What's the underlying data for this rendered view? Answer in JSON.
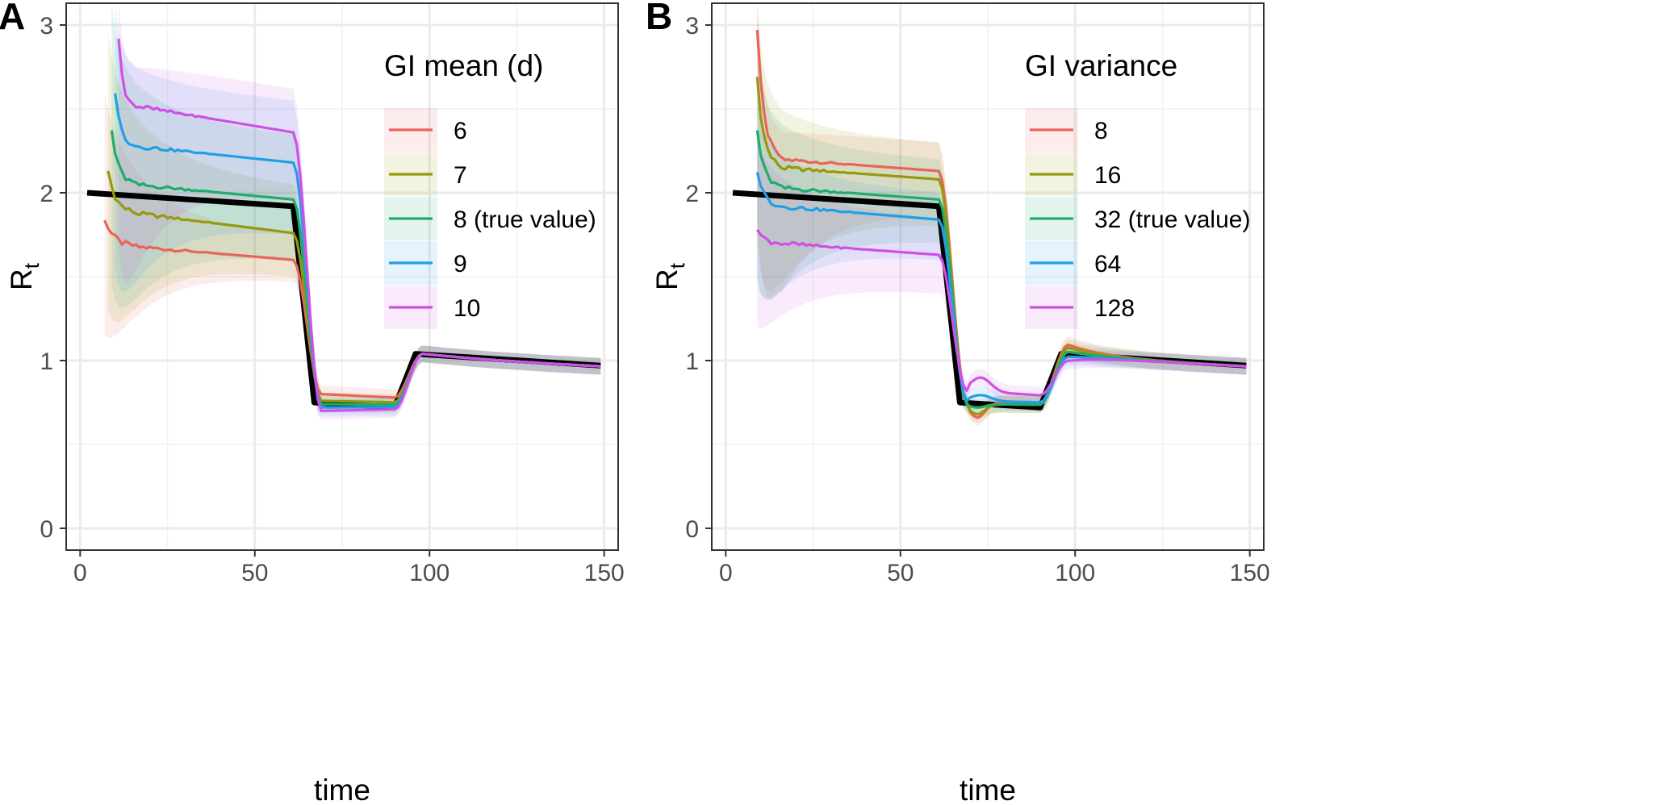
{
  "colors": {
    "background": "#ffffff",
    "grid_major": "#ebebeb",
    "grid_minor": "#f4f4f4",
    "frame": "#333333",
    "truth_line": "#000000"
  },
  "chart_data": [
    {
      "panel_label": "A",
      "type": "line",
      "xlabel": "time",
      "ylabel": "R",
      "ylabel_subscript": "t",
      "xlim": [
        -4,
        154
      ],
      "ylim": [
        -0.13,
        3.13
      ],
      "xticks": [
        0,
        50,
        100,
        150
      ],
      "yticks": [
        0,
        1,
        2,
        3
      ],
      "grid": true,
      "legend": {
        "title": "GI mean (d)",
        "placement": "top-right-inside"
      },
      "truth": {
        "x": [
          2,
          61,
          67,
          90,
          96,
          149
        ],
        "y": [
          2,
          1.92,
          0.75,
          0.72,
          1.04,
          0.97
        ]
      },
      "series": [
        {
          "name": "6",
          "color": "#e8645a",
          "start": 7,
          "peak": 1.85,
          "y_t15": 1.68,
          "y_t60": 1.6,
          "plateau": 0.8,
          "bump": 0,
          "band_lo_t0": 1.15,
          "band_hi_t0": 2.6,
          "band_lo_t60": 1.47,
          "band_hi_t60": 1.75
        },
        {
          "name": "7",
          "color": "#96990b",
          "start": 8,
          "peak": 2.13,
          "y_t15": 1.88,
          "y_t60": 1.76,
          "plateau": 0.76,
          "bump": 0,
          "band_lo_t0": 1.3,
          "band_hi_t0": 2.95,
          "band_lo_t60": 1.5,
          "band_hi_t60": 2.05
        },
        {
          "name": "8 (true value)",
          "color": "#20ac6b",
          "start": 9,
          "peak": 2.37,
          "y_t15": 2.05,
          "y_t60": 1.96,
          "plateau": 0.74,
          "bump": 0,
          "band_lo_t0": 1.45,
          "band_hi_t0": 3.13,
          "band_lo_t60": 1.6,
          "band_hi_t60": 2.35
        },
        {
          "name": "9",
          "color": "#229ee6",
          "start": 10,
          "peak": 2.6,
          "y_t15": 2.28,
          "y_t60": 2.18,
          "plateau": 0.72,
          "bump": 0,
          "band_lo_t0": 1.55,
          "band_hi_t0": 3.13,
          "band_lo_t60": 1.75,
          "band_hi_t60": 2.55
        },
        {
          "name": "10",
          "color": "#d14fe6",
          "start": 11,
          "peak": 2.91,
          "y_t15": 2.52,
          "y_t60": 2.36,
          "plateau": 0.7,
          "bump": 0,
          "band_lo_t0": 1.65,
          "band_hi_t0": 3.13,
          "band_lo_t60": 1.95,
          "band_hi_t60": 2.62
        }
      ]
    },
    {
      "panel_label": "B",
      "type": "line",
      "xlabel": "time",
      "ylabel": "R",
      "ylabel_subscript": "t",
      "xlim": [
        -4,
        154
      ],
      "ylim": [
        -0.13,
        3.13
      ],
      "xticks": [
        0,
        50,
        100,
        150
      ],
      "yticks": [
        0,
        1,
        2,
        3
      ],
      "grid": true,
      "legend": {
        "title": "GI variance",
        "placement": "top-right-inside"
      },
      "truth": {
        "x": [
          2,
          61,
          67,
          90,
          96,
          149
        ],
        "y": [
          2,
          1.92,
          0.75,
          0.72,
          1.04,
          0.97
        ]
      },
      "series": [
        {
          "name": "8",
          "color": "#e8645a",
          "start": 9,
          "peak": 2.97,
          "y_t15": 2.2,
          "y_t60": 2.13,
          "plateau": 0.75,
          "bump": 0.09,
          "band_lo_t0": 1.8,
          "band_hi_t0": 3.13,
          "band_lo_t60": 1.85,
          "band_hi_t60": 2.3
        },
        {
          "name": "16",
          "color": "#96990b",
          "start": 9,
          "peak": 2.69,
          "y_t15": 2.15,
          "y_t60": 2.08,
          "plateau": 0.74,
          "bump": 0.06,
          "band_lo_t0": 1.7,
          "band_hi_t0": 3.13,
          "band_lo_t60": 1.8,
          "band_hi_t60": 2.3
        },
        {
          "name": "32 (true value)",
          "color": "#20ac6b",
          "start": 9,
          "peak": 2.37,
          "y_t15": 2.03,
          "y_t60": 1.96,
          "plateau": 0.74,
          "bump": 0.02,
          "band_lo_t0": 1.5,
          "band_hi_t0": 2.85,
          "band_lo_t60": 1.7,
          "band_hi_t60": 2.2
        },
        {
          "name": "64",
          "color": "#229ee6",
          "start": 9,
          "peak": 2.14,
          "y_t15": 1.92,
          "y_t60": 1.84,
          "plateau": 0.76,
          "bump": -0.03,
          "band_lo_t0": 1.45,
          "band_hi_t0": 2.55,
          "band_lo_t60": 1.6,
          "band_hi_t60": 2.0
        },
        {
          "name": "128",
          "color": "#d14fe6",
          "start": 9,
          "peak": 1.78,
          "y_t15": 1.7,
          "y_t60": 1.63,
          "plateau": 0.82,
          "bump": -0.07,
          "band_lo_t0": 1.2,
          "band_hi_t0": 2.3,
          "band_lo_t60": 1.4,
          "band_hi_t60": 1.85
        }
      ]
    }
  ]
}
